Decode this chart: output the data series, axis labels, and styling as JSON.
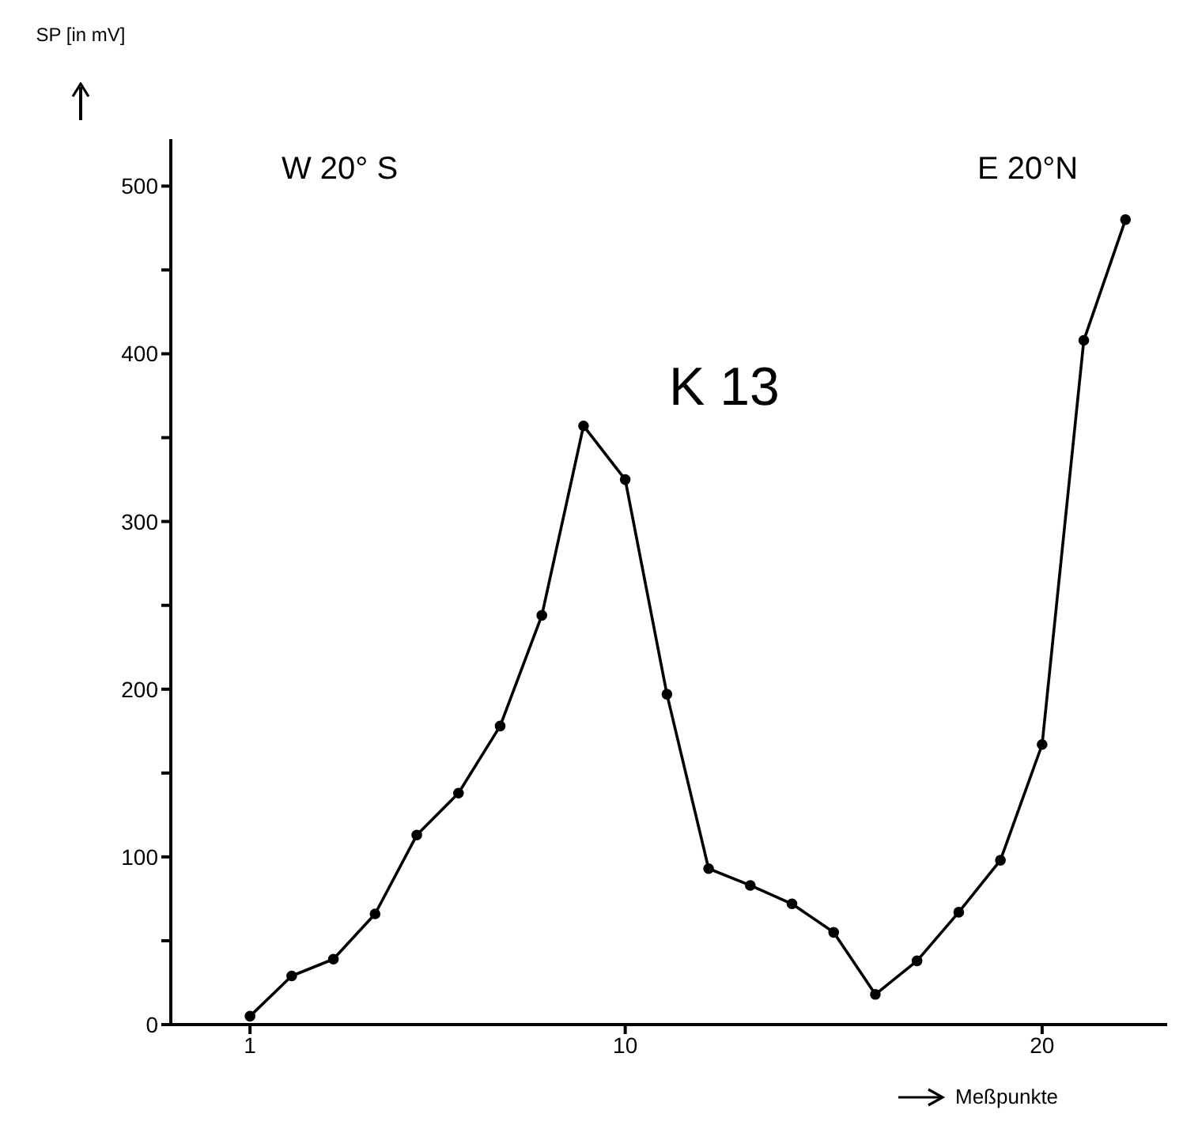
{
  "chart_data": {
    "type": "line",
    "title": "K 13",
    "xlabel": "Meßpunkte",
    "ylabel": "SP [in mV]",
    "annotations": [
      "W 20° S",
      "E 20°N"
    ],
    "x": [
      1,
      2,
      3,
      4,
      5,
      6,
      7,
      8,
      9,
      10,
      11,
      12,
      13,
      14,
      15,
      16,
      17,
      18,
      19,
      20,
      21,
      22
    ],
    "series": [
      {
        "color": "#000000",
        "values": [
          5,
          29,
          39,
          66,
          113,
          138,
          178,
          244,
          357,
          325,
          197,
          93,
          83,
          72,
          55,
          18,
          38,
          67,
          98,
          167,
          408,
          480
        ]
      }
    ],
    "xlim": [
      -0.9,
      23
    ],
    "xticks": [
      1,
      10,
      20
    ],
    "ylim": [
      0,
      528
    ],
    "yticks": [
      0,
      {
        "value": 50,
        "label": null
      },
      100,
      {
        "value": 150,
        "label": null
      },
      200,
      {
        "value": 250,
        "label": null
      },
      300,
      {
        "value": 350,
        "label": null
      },
      400,
      {
        "value": 450,
        "label": null
      },
      500
    ],
    "grid": false,
    "legend": false,
    "marker": "circle",
    "line_style": "solid"
  }
}
